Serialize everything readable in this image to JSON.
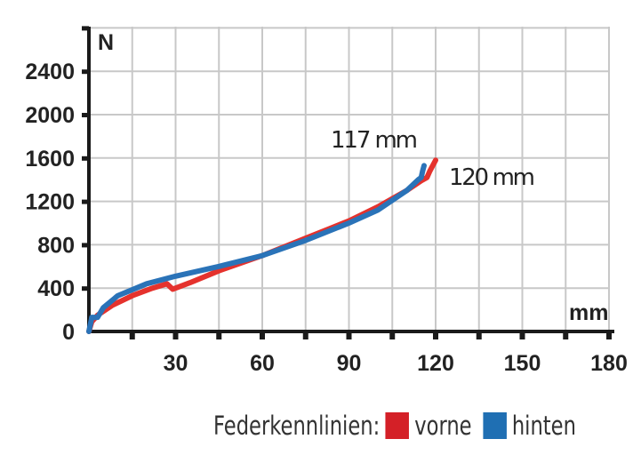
{
  "chart_data": {
    "type": "line",
    "xlabel": "mm",
    "ylabel": "N",
    "xlim": [
      0,
      180
    ],
    "ylim": [
      0,
      2800
    ],
    "xticks": [
      30,
      60,
      90,
      120,
      150,
      180
    ],
    "yticks": [
      0,
      400,
      800,
      1200,
      1600,
      2000,
      2400
    ],
    "grid": true,
    "legend_title": "Federkennlinien:",
    "legend_position": "bottom-right",
    "series": [
      {
        "name": "vorne",
        "color": "#e5322d",
        "x": [
          0,
          1,
          3,
          8,
          15,
          22,
          27,
          29,
          35,
          45,
          60,
          75,
          90,
          100,
          110,
          115,
          117,
          118,
          120
        ],
        "y": [
          0,
          90,
          150,
          240,
          330,
          400,
          440,
          390,
          450,
          560,
          700,
          860,
          1020,
          1150,
          1300,
          1390,
          1420,
          1480,
          1580
        ]
      },
      {
        "name": "hinten",
        "color": "#2a73b8",
        "x": [
          0,
          1,
          3,
          5,
          10,
          20,
          30,
          45,
          60,
          75,
          90,
          100,
          110,
          114,
          115,
          115.5,
          116
        ],
        "y": [
          0,
          130,
          130,
          220,
          330,
          440,
          510,
          600,
          700,
          840,
          1000,
          1120,
          1300,
          1400,
          1420,
          1480,
          1530
        ]
      }
    ],
    "annotations": [
      {
        "text": "117 mm"
      },
      {
        "text": "120 mm"
      }
    ]
  }
}
